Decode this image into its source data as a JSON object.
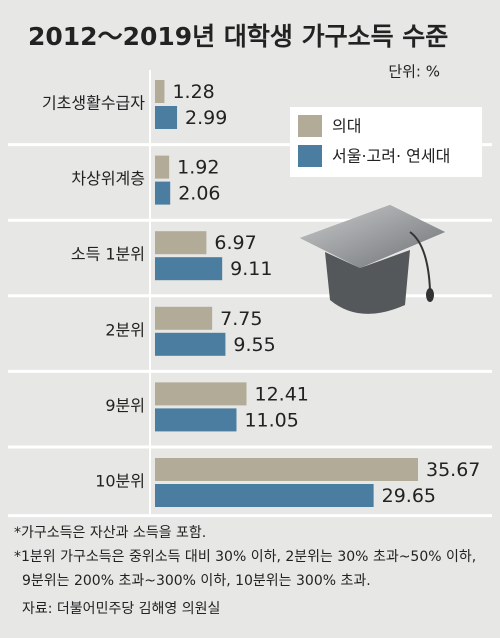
{
  "chart_data": {
    "type": "hbar",
    "title": "2012～2019년 대학생 가구소득 수준",
    "unit": "단위: %",
    "categories": [
      "기초생활수급자",
      "차상위계층",
      "소득 1분위",
      "2분위",
      "9분위",
      "10분위"
    ],
    "series": [
      {
        "name": "의대",
        "color": "#b1ab98",
        "values": [
          1.28,
          1.92,
          6.97,
          7.75,
          12.41,
          35.67
        ]
      },
      {
        "name": "서울·고려· 연세대",
        "color": "#4a7d9f",
        "values": [
          2.99,
          2.06,
          9.11,
          9.55,
          11.05,
          29.65
        ]
      }
    ],
    "notes": [
      "*가구소득은 자산과 소득을 포함.",
      "*1분위 가구소득은 중위소득 대비 30% 이하, 2분위는 30% 초과~50% 이하,",
      "9분위는 200% 초과~300% 이하, 10분위는 300% 초과."
    ],
    "source": "자료: 더불어민주당 김해영 의원실"
  }
}
